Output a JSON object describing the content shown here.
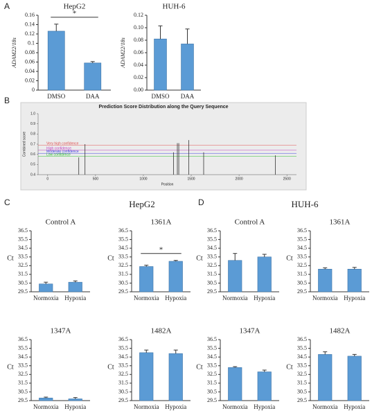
{
  "panel_labels": [
    "A",
    "B",
    "C",
    "D"
  ],
  "group_titles": [
    "HepG2",
    "HUH-6"
  ],
  "chart_data": [
    {
      "type": "bar",
      "title": "HepG2",
      "ylabel": "ADAM22/18s",
      "categories": [
        "DMSO",
        "DAA"
      ],
      "values": [
        0.126,
        0.058
      ],
      "errors": [
        0.015,
        0.003
      ],
      "color": "#5b9bd5",
      "ylim": [
        0,
        0.16
      ],
      "yticks": [
        0,
        0.02,
        0.04,
        0.06,
        0.08,
        0.1,
        0.12,
        0.14,
        0.16
      ],
      "significance": "*"
    },
    {
      "type": "bar",
      "title": "HUH-6",
      "ylabel": "ADAM22/18s",
      "categories": [
        "DMSO",
        "DAA"
      ],
      "values": [
        0.082,
        0.074
      ],
      "errors": [
        0.021,
        0.024
      ],
      "color": "#5b9bd5",
      "ylim": [
        0,
        0.12
      ],
      "yticks": [
        {
          "value": 0,
          "label": "0.00"
        },
        0.02,
        0.04,
        0.06,
        0.08,
        {
          "value": 0.1,
          "label": "0.10"
        },
        0.12
      ]
    },
    {
      "type": "stem",
      "title": "Prediction Score Distribution along the Query Sequence",
      "xlabel": "Position",
      "ylabel": "Combined score",
      "x": [
        325,
        390,
        1315,
        1355,
        1370,
        1475,
        1630,
        2380
      ],
      "values": [
        0.57,
        0.7,
        0.62,
        0.71,
        0.71,
        0.74,
        0.62,
        0.59
      ],
      "color": "#333333",
      "xlim": [
        -100,
        2600
      ],
      "xticks": [
        0,
        500,
        1000,
        1500,
        2000,
        2500
      ],
      "ylim": [
        0.4,
        1.0
      ],
      "yticks": [
        0.4,
        0.5,
        0.6,
        0.7,
        0.8,
        0.9,
        {
          "value": 1.0,
          "label": "1.0"
        }
      ],
      "thresholds": [
        {
          "label": "Very high confidence",
          "value": 0.69,
          "color": "#e05050"
        },
        {
          "label": "High confidence",
          "value": 0.64,
          "color": "#c040c0"
        },
        {
          "label": "Moderate confidence",
          "value": 0.61,
          "color": "#4040e0"
        },
        {
          "label": "Low confidence",
          "value": 0.58,
          "color": "#30c030"
        }
      ]
    },
    {
      "type": "bar",
      "title": "Control A",
      "ylabel": "Ct",
      "categories": [
        "Normoxia",
        "Hypoxia"
      ],
      "values": [
        30.4,
        30.6
      ],
      "errors": [
        0.2,
        0.15
      ],
      "color": "#5b9bd5",
      "ylim": [
        29.5,
        36.5
      ],
      "yticks": [
        29.5,
        30.5,
        31.5,
        32.5,
        33.5,
        34.5,
        35.5,
        36.5
      ]
    },
    {
      "type": "bar",
      "title": "1361A",
      "ylabel": "Ct",
      "categories": [
        "Normoxia",
        "Hypoxia"
      ],
      "values": [
        32.4,
        33.0
      ],
      "errors": [
        0.15,
        0.1
      ],
      "color": "#5b9bd5",
      "ylim": [
        29.5,
        36.5
      ],
      "yticks": [
        29.5,
        30.5,
        31.5,
        32.5,
        33.5,
        34.5,
        35.5,
        36.5
      ],
      "significance": "*"
    },
    {
      "type": "bar",
      "title": "1347A",
      "ylabel": "Ct",
      "categories": [
        "Normoxia",
        "Hypoxia"
      ],
      "values": [
        29.8,
        29.7
      ],
      "errors": [
        0.1,
        0.15
      ],
      "color": "#5b9bd5",
      "ylim": [
        29.5,
        36.5
      ],
      "yticks": [
        29.5,
        30.5,
        31.5,
        32.5,
        33.5,
        34.5,
        35.5,
        36.5
      ]
    },
    {
      "type": "bar",
      "title": "1482A",
      "ylabel": "Ct",
      "categories": [
        "Normoxia",
        "Hypoxia"
      ],
      "values": [
        35.0,
        34.9
      ],
      "errors": [
        0.3,
        0.4
      ],
      "color": "#5b9bd5",
      "ylim": [
        29.5,
        36.5
      ],
      "yticks": [
        29.5,
        30.5,
        31.5,
        32.5,
        33.5,
        34.5,
        35.5,
        36.5
      ]
    },
    {
      "type": "bar",
      "title": "Control A",
      "ylabel": "Ct",
      "categories": [
        "Normoxia",
        "Hypoxia"
      ],
      "values": [
        33.1,
        33.5
      ],
      "errors": [
        0.8,
        0.3
      ],
      "color": "#5b9bd5",
      "ylim": [
        29.5,
        36.5
      ],
      "yticks": [
        29.5,
        30.5,
        31.5,
        32.5,
        33.5,
        34.5,
        35.5,
        36.5
      ]
    },
    {
      "type": "bar",
      "title": "1361A",
      "ylabel": "Ct",
      "categories": [
        "Normoxia",
        "Hypoxia"
      ],
      "values": [
        32.1,
        32.1
      ],
      "errors": [
        0.15,
        0.2
      ],
      "color": "#5b9bd5",
      "ylim": [
        29.5,
        36.5
      ],
      "yticks": [
        29.5,
        30.5,
        31.5,
        32.5,
        33.5,
        34.5,
        35.5,
        36.5
      ]
    },
    {
      "type": "bar",
      "title": "1347A",
      "ylabel": "Ct",
      "categories": [
        "Normoxia",
        "Hypoxia"
      ],
      "values": [
        33.3,
        32.8
      ],
      "errors": [
        0.1,
        0.2
      ],
      "color": "#5b9bd5",
      "ylim": [
        29.5,
        36.5
      ],
      "yticks": [
        29.5,
        30.5,
        31.5,
        32.5,
        33.5,
        34.5,
        35.5,
        36.5
      ]
    },
    {
      "type": "bar",
      "title": "1482A",
      "ylabel": "Ct",
      "categories": [
        "Normoxia",
        "Hypoxia"
      ],
      "values": [
        34.8,
        34.6
      ],
      "errors": [
        0.3,
        0.2
      ],
      "color": "#5b9bd5",
      "ylim": [
        29.5,
        36.5
      ],
      "yticks": [
        29.5,
        30.5,
        31.5,
        32.5,
        33.5,
        34.5,
        35.5,
        36.5
      ]
    }
  ]
}
